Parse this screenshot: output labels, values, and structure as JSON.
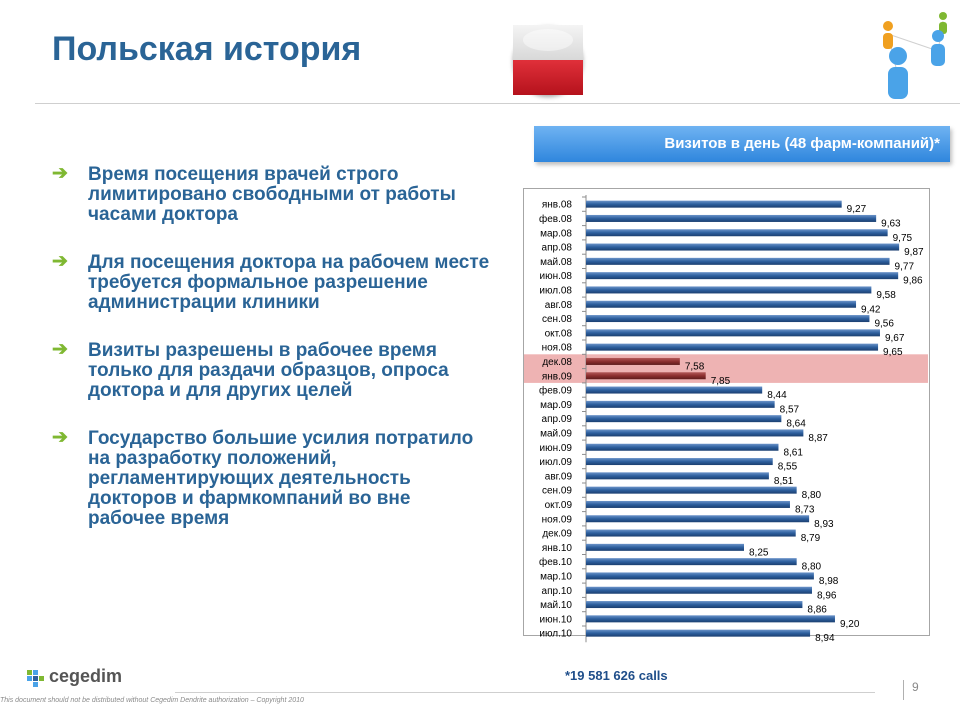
{
  "title": "Польская история",
  "bullets": [
    "Время посещения врачей строго лимитировано свободными от работы часами доктора",
    "Для посещения доктора на рабочем месте требуется формальное разрешение администрации клиники",
    "Визиты разрешены в рабочее время  только для раздачи образцов, опроса доктора и для других целей",
    "Государство большие усилия потратило на разработку положений, регламентирующих деятельность докторов и фармкомпаний во вне рабочее время"
  ],
  "chart_header": "Визитов в день (48 фарм-компаний)*",
  "footnote": "*19 581 626 calls",
  "logo_text": "cegedim",
  "disclaimer": "This document should not be distributed without Cegedim Dendrite authorization  –  Copyright 2010",
  "page_number": "9",
  "colors": {
    "title": "#2a6496",
    "bullet_arrow": "#7fb832",
    "bar": "#2d5f9e",
    "highlight": "#e89a9a",
    "header": "#3a8ee6"
  },
  "chart_data": {
    "type": "bar",
    "orientation": "horizontal",
    "categories": [
      "янв.08",
      "фев.08",
      "мар.08",
      "апр.08",
      "май.08",
      "июн.08",
      "июл.08",
      "авг.08",
      "сен.08",
      "окт.08",
      "ноя.08",
      "дек.08",
      "янв.09",
      "фев.09",
      "мар.09",
      "апр.09",
      "май.09",
      "июн.09",
      "июл.09",
      "авг.09",
      "сен.09",
      "окт.09",
      "ноя.09",
      "дек.09",
      "янв.10",
      "фев.10",
      "мар.10",
      "апр.10",
      "май.10",
      "июн.10",
      "июл.10"
    ],
    "values": [
      9.27,
      9.63,
      9.75,
      9.87,
      9.77,
      9.86,
      9.58,
      9.42,
      9.56,
      9.67,
      9.65,
      7.58,
      7.85,
      8.44,
      8.57,
      8.64,
      8.87,
      8.61,
      8.55,
      8.51,
      8.8,
      8.73,
      8.93,
      8.79,
      8.25,
      8.8,
      8.98,
      8.96,
      8.86,
      9.2,
      8.94
    ],
    "labels": [
      "9,27",
      "9,63",
      "9,75",
      "9,87",
      "9,77",
      "9,86",
      "9,58",
      "9,42",
      "9,56",
      "9,67",
      "9,65",
      "7,58",
      "7,85",
      "8,44",
      "8,57",
      "8,64",
      "8,87",
      "8,61",
      "8,55",
      "8,51",
      "8,80",
      "8,73",
      "8,93",
      "8,79",
      "8,25",
      "8,80",
      "8,98",
      "8,96",
      "8,86",
      "9,20",
      "8,94"
    ],
    "highlighted": [
      "дек.08",
      "янв.09"
    ],
    "xlim": [
      6.6,
      9.9
    ],
    "grid": false,
    "legend": "none"
  }
}
